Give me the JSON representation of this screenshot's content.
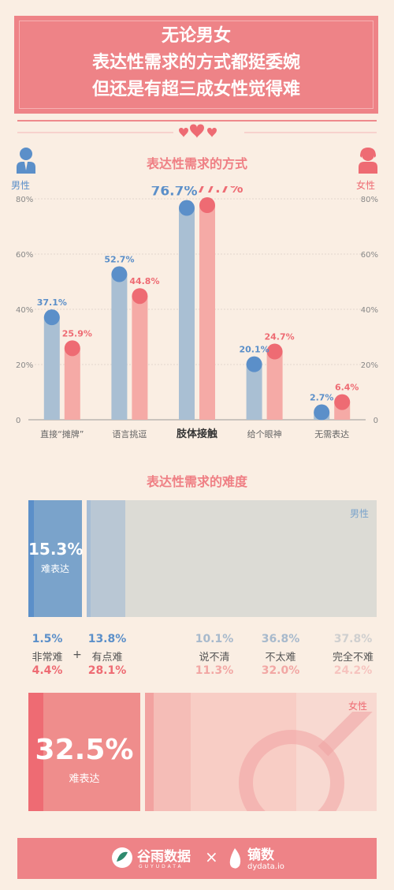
{
  "header": {
    "lines": [
      "无论男女",
      "表达性需求的方式都挺委婉",
      "但还是有超三成女性觉得难"
    ]
  },
  "colors": {
    "male": "#5b8fc9",
    "male_bar": "#a9bfd3",
    "female": "#ee6b73",
    "female_bar": "#f5aaa6",
    "accent": "#ef7f84",
    "background": "#faeee3"
  },
  "legend": {
    "male": "男性",
    "female": "女性"
  },
  "chart_data": [
    {
      "type": "bar",
      "title": "表达性需求的方式",
      "categories": [
        "直接“摊牌”",
        "语言挑逗",
        "肢体接触",
        "给个眼神",
        "无需表达"
      ],
      "series": [
        {
          "name": "男性",
          "values": [
            37.1,
            52.7,
            76.7,
            20.1,
            2.7
          ],
          "labels": [
            "37.1%",
            "52.7%",
            "76.7%",
            "20.1%",
            "2.7%"
          ]
        },
        {
          "name": "女性",
          "values": [
            25.9,
            44.8,
            77.7,
            24.7,
            6.4
          ],
          "labels": [
            "25.9%",
            "44.8%",
            "77.7%",
            "24.7%",
            "6.4%"
          ]
        }
      ],
      "ylim": [
        0,
        80
      ],
      "yticks": [
        "0",
        "20%",
        "40%",
        "60%",
        "80%"
      ],
      "grid": true
    },
    {
      "type": "bar",
      "title": "表达性需求的难度",
      "categories": [
        "非常难",
        "有点难",
        "说不清",
        "不太难",
        "完全不难"
      ],
      "series": [
        {
          "name": "男性",
          "values": [
            1.5,
            13.8,
            10.1,
            36.8,
            37.8
          ],
          "labels": [
            "1.5%",
            "13.8%",
            "10.1%",
            "36.8%",
            "37.8%"
          ]
        },
        {
          "name": "女性",
          "values": [
            4.4,
            28.1,
            11.3,
            32.0,
            24.2
          ],
          "labels": [
            "4.4%",
            "28.1%",
            "11.3%",
            "32.0%",
            "24.2%"
          ]
        }
      ],
      "plus": "+",
      "summary": {
        "male": {
          "value": "15.3%",
          "label": "难表达"
        },
        "female": {
          "value": "32.5%",
          "label": "难表达"
        }
      }
    }
  ],
  "footer": {
    "brand1": "谷雨数据",
    "brand1_sub": "GUYUDATA",
    "separator": "×",
    "brand2": "镝数",
    "brand2_sub": "dydata.io"
  }
}
